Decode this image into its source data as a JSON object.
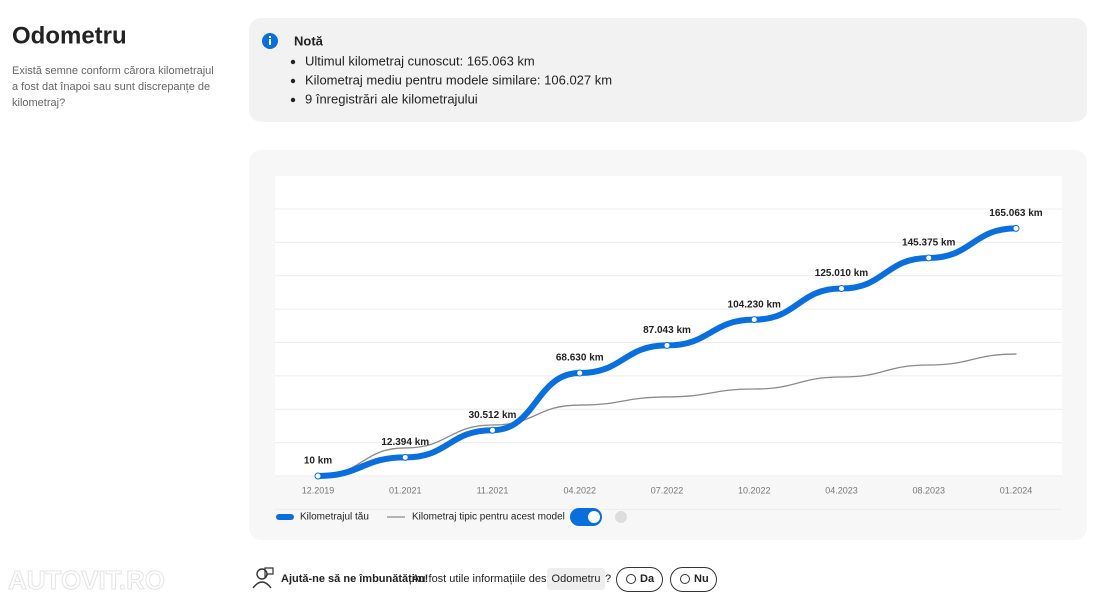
{
  "header": {
    "title": "Odometru",
    "description": [
      "Există semne conform cărora kilometrajul",
      "a fost dat înapoi sau sunt discrepanțe de",
      "kilometraj?"
    ]
  },
  "note": {
    "title": "Notă",
    "items": [
      "Ultimul kilometraj cunoscut: 165.063 km",
      "Kilometraj mediu pentru modele similare: 106.027 km",
      "9 înregistrări ale kilometrajului"
    ]
  },
  "chart_data": {
    "type": "line",
    "categories": [
      "12.2019",
      "01.2021",
      "11.2021",
      "04.2022",
      "07.2022",
      "10.2022",
      "04.2023",
      "08.2023",
      "01.2024"
    ],
    "series": [
      {
        "name": "Kilometrajul tău",
        "color": "#0a6fdc",
        "values": [
          10,
          12394,
          30512,
          68630,
          87043,
          104230,
          125010,
          145375,
          165063
        ],
        "value_labels": [
          "10 km",
          "12.394 km",
          "30.512 km",
          "68.630 km",
          "87.043 km",
          "104.230 km",
          "125.010 km",
          "145.375 km",
          "165.063 km"
        ]
      },
      {
        "name": "Kilometraj tipic pentru acest model",
        "color": "#8a8a8a",
        "values": [
          0,
          18700,
          34000,
          47300,
          52700,
          58000,
          66000,
          74000,
          81300
        ]
      }
    ],
    "ylim": [
      0,
      200000
    ],
    "grid": true
  },
  "feedback": {
    "prompt": "Ajută-ne să ne îmbunătățim!",
    "question": "Au fost utile informațiile despre",
    "topic": "Odometru",
    "question_mark": "?",
    "yes": "Da",
    "no": "Nu"
  },
  "watermark": "AUTOVIT.RO"
}
